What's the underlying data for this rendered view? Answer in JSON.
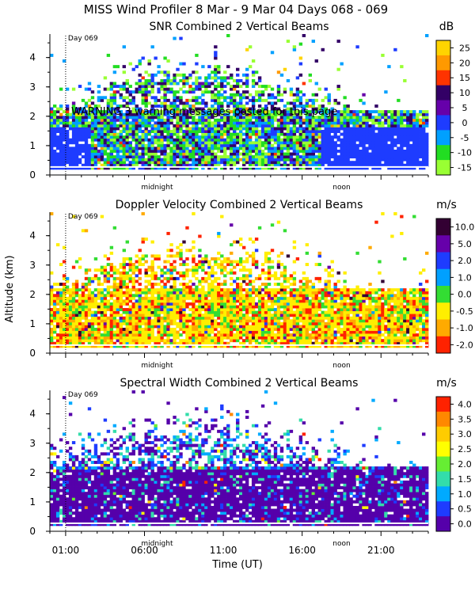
{
  "page_title": "MISS Wind Profiler    8 Mar -  9 Mar 04 Days 068 - 069",
  "warning": "WARNING   3 warning messages posted for this page",
  "y_axis_label": "Altitude (km)",
  "x_axis_label": "Time (UT)",
  "midnight_label": "midnight",
  "noon_label": "noon",
  "day_marker": "Day 069",
  "colors": {
    "background": "#ffffff",
    "text": "#000000",
    "white_gap": "#ffffff"
  },
  "chart_data": [
    {
      "type": "heatmap",
      "title": "SNR Combined 2 Vertical Beams",
      "unit": "dB",
      "ylim": [
        0,
        4.8
      ],
      "yticks": [
        0,
        1,
        2,
        3,
        4
      ],
      "xlim": [
        0,
        24
      ],
      "xticks": [
        "01:00",
        "06:00",
        "11:00",
        "16:00",
        "21:00"
      ],
      "xtick_hours": [
        1,
        6,
        11,
        16,
        21
      ],
      "colorbar_labels": [
        "25",
        "20",
        "15",
        "10",
        "5",
        "0",
        "-5",
        "-10",
        "-15"
      ],
      "colorbar_colors": [
        "#ffd400",
        "#ff9900",
        "#ff3300",
        "#330066",
        "#6600aa",
        "#1e3cff",
        "#00a0ff",
        "#22dd22",
        "#99ff33"
      ],
      "dominant_levels": [
        7,
        8,
        5,
        6,
        3
      ]
    },
    {
      "type": "heatmap",
      "title": "Doppler Velocity Combined 2 Vertical Beams",
      "unit": "m/s",
      "ylim": [
        0,
        4.8
      ],
      "yticks": [
        0,
        1,
        2,
        3,
        4
      ],
      "xlim": [
        0,
        24
      ],
      "xticks": [
        "01:00",
        "06:00",
        "11:00",
        "16:00",
        "21:00"
      ],
      "xtick_hours": [
        1,
        6,
        11,
        16,
        21
      ],
      "colorbar_labels": [
        "10.0",
        "5.0",
        "2.0",
        "1.0",
        "0.0",
        "-0.5",
        "-1.0",
        "-2.0"
      ],
      "colorbar_colors": [
        "#330033",
        "#6600aa",
        "#1e3cff",
        "#00a0ff",
        "#33dd33",
        "#ffee00",
        "#ffaa00",
        "#ff2200"
      ],
      "dominant_levels": [
        5,
        5,
        5,
        6,
        4,
        7
      ]
    },
    {
      "type": "heatmap",
      "title": "Spectral Width Combined 2 Vertical Beams",
      "unit": "m/s",
      "ylim": [
        0,
        4.8
      ],
      "yticks": [
        0,
        1,
        2,
        3,
        4
      ],
      "xlim": [
        0,
        24
      ],
      "xticks": [
        "01:00",
        "06:00",
        "11:00",
        "16:00",
        "21:00"
      ],
      "xtick_hours": [
        1,
        6,
        11,
        16,
        21
      ],
      "colorbar_labels": [
        "4.0",
        "3.5",
        "3.0",
        "2.5",
        "2.0",
        "1.5",
        "1.0",
        "0.5",
        "0.0"
      ],
      "colorbar_colors": [
        "#ff2200",
        "#ff8800",
        "#ffcc00",
        "#ffff00",
        "#66ee33",
        "#33ddaa",
        "#00aaff",
        "#1e3cff",
        "#5500aa"
      ],
      "dominant_levels": [
        8,
        8,
        7,
        6,
        5
      ]
    }
  ]
}
